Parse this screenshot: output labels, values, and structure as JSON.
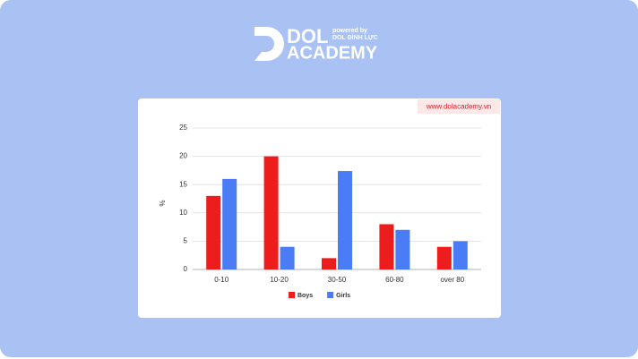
{
  "header": {
    "logo": "DOL",
    "logo_sub": "ACADEMY",
    "powered_by": "powered by",
    "brand": "DOL ĐÌNH LỰC"
  },
  "watermark": "www.dolacademy.vn",
  "chart_data": {
    "type": "bar",
    "y_label": "%",
    "categories": [
      "0-10",
      "10-20",
      "30-50",
      "60-80",
      "over 80"
    ],
    "series": [
      {
        "name": "Boys",
        "color": "#ee1d1d",
        "values": [
          13,
          20,
          2,
          8,
          4
        ]
      },
      {
        "name": "Girls",
        "color": "#4a7cf6",
        "values": [
          16,
          4,
          17.4,
          7,
          5
        ]
      }
    ],
    "ylim": [
      0,
      25
    ],
    "yticks": [
      0,
      5,
      10,
      15,
      20,
      25
    ],
    "grid": true,
    "legend": "bottom"
  }
}
